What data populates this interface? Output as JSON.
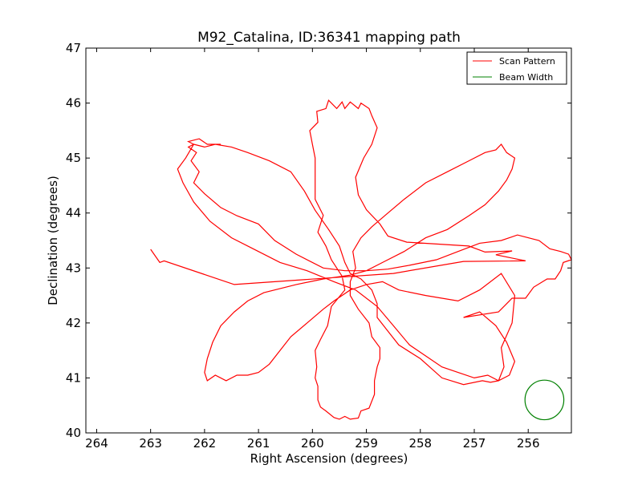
{
  "chart_data": {
    "type": "line",
    "title": "M92_Catalina, ID:36341 mapping path",
    "xlabel": "Right Ascension (degrees)",
    "ylabel": "Declination (degrees)",
    "xlim": [
      264.2,
      255.2
    ],
    "ylim": [
      40,
      47
    ],
    "x_ticks": [
      264,
      263,
      262,
      261,
      260,
      259,
      258,
      257,
      256
    ],
    "y_ticks": [
      40,
      41,
      42,
      43,
      44,
      45,
      46,
      47
    ],
    "grid": false,
    "legend": {
      "placement": "top-right",
      "entries": [
        "Scan Pattern",
        "Beam Width"
      ]
    },
    "series": [
      {
        "name": "Scan Pattern",
        "color": "#ff0000",
        "points": [
          [
            263.0,
            43.34
          ],
          [
            262.83,
            43.1
          ],
          [
            262.75,
            43.13
          ],
          [
            261.45,
            42.7
          ],
          [
            258.5,
            42.9
          ],
          [
            257.2,
            43.12
          ],
          [
            256.05,
            43.13
          ],
          [
            256.6,
            43.24
          ],
          [
            256.3,
            43.31
          ],
          [
            256.8,
            43.29
          ],
          [
            257.1,
            43.4
          ],
          [
            258.25,
            43.47
          ],
          [
            258.6,
            43.58
          ],
          [
            258.75,
            43.8
          ],
          [
            259.0,
            44.06
          ],
          [
            259.15,
            44.33
          ],
          [
            259.2,
            44.65
          ],
          [
            259.05,
            45.0
          ],
          [
            258.9,
            45.25
          ],
          [
            258.8,
            45.55
          ],
          [
            258.9,
            45.77
          ],
          [
            258.95,
            45.9
          ],
          [
            259.1,
            46.0
          ],
          [
            259.15,
            45.9
          ],
          [
            259.3,
            46.02
          ],
          [
            259.4,
            45.9
          ],
          [
            259.45,
            46.02
          ],
          [
            259.55,
            45.9
          ],
          [
            259.7,
            46.05
          ],
          [
            259.75,
            45.9
          ],
          [
            259.92,
            45.85
          ],
          [
            259.9,
            45.65
          ],
          [
            260.05,
            45.5
          ],
          [
            260.0,
            45.25
          ],
          [
            259.95,
            45.0
          ],
          [
            259.95,
            44.5
          ],
          [
            259.95,
            44.25
          ],
          [
            259.8,
            43.96
          ],
          [
            259.9,
            43.65
          ],
          [
            259.75,
            43.4
          ],
          [
            259.65,
            43.15
          ],
          [
            259.55,
            43.0
          ],
          [
            259.45,
            42.85
          ],
          [
            259.4,
            42.6
          ],
          [
            259.65,
            42.3
          ],
          [
            259.72,
            41.95
          ],
          [
            259.85,
            41.7
          ],
          [
            259.95,
            41.5
          ],
          [
            259.92,
            41.2
          ],
          [
            259.95,
            41.0
          ],
          [
            259.9,
            40.85
          ],
          [
            259.9,
            40.6
          ],
          [
            259.85,
            40.47
          ],
          [
            259.75,
            40.4
          ],
          [
            259.6,
            40.28
          ],
          [
            259.5,
            40.25
          ],
          [
            259.4,
            40.3
          ],
          [
            259.3,
            40.25
          ],
          [
            259.15,
            40.27
          ],
          [
            259.1,
            40.4
          ],
          [
            258.95,
            40.45
          ],
          [
            258.85,
            40.7
          ],
          [
            258.85,
            40.95
          ],
          [
            258.8,
            41.2
          ],
          [
            258.75,
            41.35
          ],
          [
            258.75,
            41.55
          ],
          [
            258.9,
            41.75
          ],
          [
            258.95,
            42.0
          ],
          [
            259.15,
            42.25
          ],
          [
            259.3,
            42.5
          ],
          [
            259.3,
            42.75
          ],
          [
            259.2,
            43.0
          ],
          [
            259.25,
            43.3
          ],
          [
            259.1,
            43.55
          ],
          [
            258.9,
            43.75
          ],
          [
            258.6,
            44.0
          ],
          [
            258.3,
            44.25
          ],
          [
            257.9,
            44.55
          ],
          [
            257.5,
            44.75
          ],
          [
            257.1,
            44.95
          ],
          [
            256.8,
            45.1
          ],
          [
            256.6,
            45.15
          ],
          [
            256.5,
            45.25
          ],
          [
            256.4,
            45.1
          ],
          [
            256.25,
            45.0
          ],
          [
            256.3,
            44.8
          ],
          [
            256.4,
            44.6
          ],
          [
            256.55,
            44.4
          ],
          [
            256.8,
            44.15
          ],
          [
            257.1,
            43.95
          ],
          [
            257.5,
            43.7
          ],
          [
            257.9,
            43.55
          ],
          [
            258.3,
            43.3
          ],
          [
            258.7,
            43.1
          ],
          [
            259.0,
            42.95
          ],
          [
            259.3,
            42.87
          ],
          [
            259.8,
            42.8
          ],
          [
            260.3,
            42.7
          ],
          [
            260.9,
            42.55
          ],
          [
            261.2,
            42.4
          ],
          [
            261.45,
            42.2
          ],
          [
            261.7,
            41.95
          ],
          [
            261.85,
            41.65
          ],
          [
            261.95,
            41.35
          ],
          [
            262.0,
            41.1
          ],
          [
            261.95,
            40.95
          ],
          [
            261.8,
            41.05
          ],
          [
            261.6,
            40.95
          ],
          [
            261.4,
            41.05
          ],
          [
            261.2,
            41.05
          ],
          [
            261.0,
            41.1
          ],
          [
            260.8,
            41.25
          ],
          [
            260.6,
            41.5
          ],
          [
            260.4,
            41.75
          ],
          [
            260.1,
            42.0
          ],
          [
            259.8,
            42.25
          ],
          [
            259.6,
            42.4
          ],
          [
            259.3,
            42.6
          ],
          [
            259.0,
            42.7
          ],
          [
            258.7,
            42.75
          ],
          [
            258.4,
            42.6
          ],
          [
            257.9,
            42.5
          ],
          [
            257.3,
            42.4
          ],
          [
            256.9,
            42.6
          ],
          [
            256.5,
            42.9
          ],
          [
            256.25,
            42.5
          ],
          [
            256.3,
            42.0
          ],
          [
            256.5,
            41.55
          ],
          [
            256.45,
            41.2
          ],
          [
            256.55,
            40.95
          ],
          [
            256.75,
            41.05
          ],
          [
            257.0,
            41.0
          ],
          [
            257.3,
            41.1
          ],
          [
            257.6,
            41.2
          ],
          [
            257.9,
            41.4
          ],
          [
            258.2,
            41.6
          ],
          [
            258.5,
            41.95
          ],
          [
            258.8,
            42.3
          ],
          [
            259.2,
            42.6
          ],
          [
            259.6,
            42.75
          ],
          [
            260.1,
            42.95
          ],
          [
            260.6,
            43.1
          ],
          [
            261.1,
            43.35
          ],
          [
            261.5,
            43.55
          ],
          [
            261.9,
            43.85
          ],
          [
            262.2,
            44.2
          ],
          [
            262.4,
            44.55
          ],
          [
            262.5,
            44.8
          ],
          [
            262.35,
            45.0
          ],
          [
            262.2,
            45.25
          ],
          [
            262.0,
            45.2
          ],
          [
            261.8,
            45.25
          ],
          [
            261.5,
            45.2
          ],
          [
            261.2,
            45.1
          ],
          [
            260.8,
            44.95
          ],
          [
            260.4,
            44.75
          ],
          [
            260.15,
            44.4
          ],
          [
            259.95,
            44.05
          ],
          [
            259.7,
            43.7
          ],
          [
            259.5,
            43.4
          ],
          [
            259.4,
            43.1
          ],
          [
            259.3,
            42.9
          ],
          [
            259.1,
            42.8
          ],
          [
            258.9,
            42.6
          ],
          [
            258.8,
            42.35
          ],
          [
            258.8,
            42.1
          ],
          [
            258.6,
            41.85
          ],
          [
            258.4,
            41.6
          ],
          [
            258.0,
            41.35
          ],
          [
            257.6,
            41.0
          ],
          [
            257.2,
            40.88
          ],
          [
            256.85,
            40.95
          ],
          [
            256.7,
            40.92
          ],
          [
            256.55,
            40.95
          ],
          [
            256.35,
            41.05
          ],
          [
            256.25,
            41.3
          ],
          [
            256.4,
            41.65
          ],
          [
            256.6,
            41.95
          ],
          [
            256.9,
            42.2
          ],
          [
            257.2,
            42.1
          ],
          [
            256.55,
            42.2
          ],
          [
            256.3,
            42.45
          ],
          [
            256.05,
            42.45
          ],
          [
            255.9,
            42.65
          ],
          [
            255.65,
            42.8
          ],
          [
            255.5,
            42.8
          ],
          [
            255.4,
            42.95
          ],
          [
            255.35,
            43.1
          ],
          [
            255.2,
            43.15
          ],
          [
            255.25,
            43.25
          ],
          [
            255.4,
            43.3
          ],
          [
            255.6,
            43.35
          ],
          [
            255.8,
            43.5
          ],
          [
            256.0,
            43.55
          ],
          [
            256.2,
            43.6
          ],
          [
            256.5,
            43.5
          ],
          [
            256.9,
            43.45
          ],
          [
            257.3,
            43.3
          ],
          [
            257.7,
            43.15
          ],
          [
            258.2,
            43.05
          ],
          [
            258.6,
            42.98
          ],
          [
            259.0,
            42.95
          ],
          [
            259.4,
            42.95
          ],
          [
            259.8,
            43.0
          ],
          [
            260.3,
            43.25
          ],
          [
            260.7,
            43.5
          ],
          [
            261.0,
            43.8
          ],
          [
            261.4,
            43.95
          ],
          [
            261.7,
            44.1
          ],
          [
            262.0,
            44.35
          ],
          [
            262.2,
            44.55
          ],
          [
            262.1,
            44.75
          ],
          [
            262.25,
            44.95
          ],
          [
            262.15,
            45.1
          ],
          [
            262.3,
            45.2
          ],
          [
            262.2,
            45.25
          ],
          [
            262.3,
            45.3
          ],
          [
            262.1,
            45.35
          ],
          [
            261.95,
            45.25
          ],
          [
            261.7,
            45.25
          ]
        ]
      }
    ],
    "beam": {
      "name": "Beam Width",
      "color": "#008000",
      "center_ra": 255.7,
      "center_dec": 40.6,
      "radius_deg": 0.36
    }
  }
}
